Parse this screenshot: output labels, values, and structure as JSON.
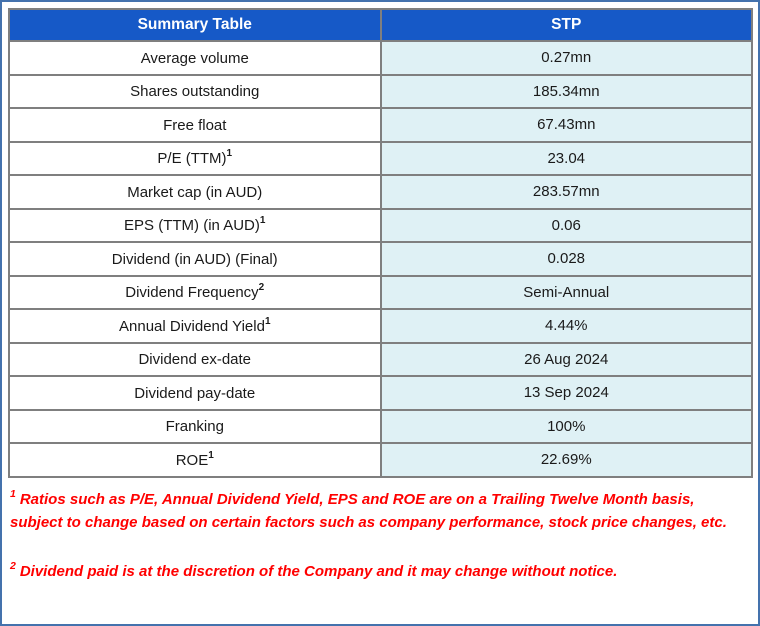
{
  "colors": {
    "header_background": "#1659C7",
    "header_text": "#FFFFFF",
    "value_cell_background": "#DFF1F5",
    "label_cell_background": "#FFFFFF",
    "inner_border": "#7F7F7F",
    "table_outer_border": "#595959",
    "page_frame_border": "#4472AD",
    "footnote_text": "#FF0000",
    "cell_text": "#1A1A1A"
  },
  "table": {
    "header": {
      "label_col": "Summary Table",
      "value_col": "STP"
    },
    "rows": [
      {
        "label": "Average volume",
        "sup": "",
        "value": "0.27mn"
      },
      {
        "label": "Shares outstanding",
        "sup": "",
        "value": "185.34mn"
      },
      {
        "label": "Free float",
        "sup": "",
        "value": "67.43mn"
      },
      {
        "label": "P/E (TTM)",
        "sup": "1",
        "value": "23.04"
      },
      {
        "label": "Market cap (in AUD)",
        "sup": "",
        "value": "283.57mn"
      },
      {
        "label": "EPS (TTM) (in AUD)",
        "sup": "1",
        "value": "0.06"
      },
      {
        "label": "Dividend (in AUD) (Final)",
        "sup": "",
        "value": "0.028"
      },
      {
        "label": "Dividend Frequency",
        "sup": "2",
        "value": "Semi-Annual"
      },
      {
        "label": "Annual Dividend Yield",
        "sup": "1",
        "value": "4.44%"
      },
      {
        "label": "Dividend ex-date",
        "sup": "",
        "value": "26 Aug 2024"
      },
      {
        "label": "Dividend pay-date",
        "sup": "",
        "value": "13 Sep 2024"
      },
      {
        "label": "Franking",
        "sup": "",
        "value": "100%"
      },
      {
        "label": "ROE",
        "sup": "1",
        "value": "22.69%"
      }
    ]
  },
  "footnotes": [
    {
      "sup": "1",
      "text": "Ratios such as P/E, Annual Dividend Yield, EPS and ROE are on a Trailing Twelve Month basis, subject to change based on certain factors such as company performance, stock price changes, etc."
    },
    {
      "sup": "2",
      "text": "Dividend paid is at the discretion of the Company and it may change without notice."
    }
  ]
}
